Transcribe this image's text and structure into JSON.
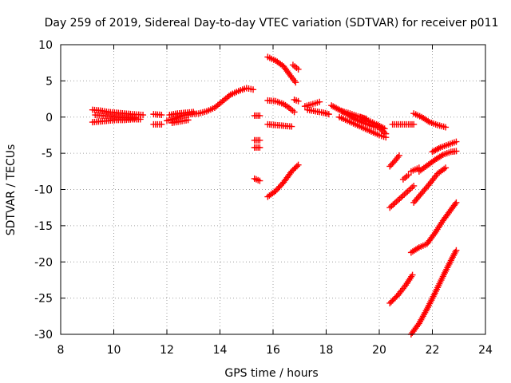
{
  "chart_data": {
    "type": "scatter",
    "title": "Day 259 of 2019, Sidereal Day-to-day VTEC variation (SDTVAR) for receiver p011",
    "xlabel": "GPS time / hours",
    "ylabel": "SDTVAR / TECUs",
    "xlim": [
      8,
      24
    ],
    "ylim": [
      -30,
      10
    ],
    "xticks": [
      "8",
      "10",
      "12",
      "14",
      "16",
      "18",
      "20",
      "22",
      "24"
    ],
    "yticks": [
      "10",
      "5",
      "0",
      "-5",
      "-10",
      "-15",
      "-20",
      "-25",
      "-30"
    ],
    "grid": true,
    "marker": "plus",
    "color": "#ff0000",
    "series": [
      {
        "points": [
          [
            9.2,
            1.0
          ],
          [
            9.5,
            0.9
          ],
          [
            9.8,
            0.7
          ],
          [
            10.1,
            0.6
          ],
          [
            10.4,
            0.5
          ],
          [
            10.7,
            0.4
          ],
          [
            11.1,
            0.3
          ]
        ]
      },
      {
        "points": [
          [
            9.2,
            -0.7
          ],
          [
            9.5,
            -0.6
          ],
          [
            9.8,
            -0.5
          ],
          [
            10.1,
            -0.4
          ],
          [
            10.4,
            -0.4
          ],
          [
            10.7,
            -0.3
          ],
          [
            11.0,
            -0.3
          ]
        ]
      },
      {
        "points": [
          [
            9.3,
            0.3
          ],
          [
            9.6,
            0.2
          ],
          [
            9.9,
            0.1
          ],
          [
            10.2,
            0.0
          ],
          [
            10.5,
            -0.1
          ],
          [
            10.8,
            -0.1
          ]
        ]
      },
      {
        "points": [
          [
            11.5,
            0.4
          ],
          [
            11.8,
            0.3
          ]
        ]
      },
      {
        "points": [
          [
            11.5,
            -1.0
          ],
          [
            11.8,
            -1.0
          ]
        ]
      },
      {
        "points": [
          [
            12.0,
            -0.5
          ],
          [
            12.3,
            -0.2
          ],
          [
            12.6,
            0.2
          ],
          [
            12.9,
            0.4
          ],
          [
            13.2,
            0.5
          ],
          [
            13.5,
            0.8
          ],
          [
            13.8,
            1.3
          ],
          [
            14.1,
            2.2
          ],
          [
            14.4,
            3.1
          ],
          [
            14.7,
            3.6
          ],
          [
            15.0,
            4.0
          ],
          [
            15.25,
            3.8
          ]
        ]
      },
      {
        "points": [
          [
            12.1,
            0.3
          ],
          [
            12.4,
            0.5
          ],
          [
            12.7,
            0.6
          ],
          [
            13.0,
            0.7
          ]
        ]
      },
      {
        "points": [
          [
            12.2,
            -0.8
          ],
          [
            12.5,
            -0.6
          ],
          [
            12.8,
            -0.4
          ]
        ]
      },
      {
        "points": [
          [
            15.3,
            0.2
          ],
          [
            15.5,
            0.2
          ]
        ]
      },
      {
        "points": [
          [
            15.3,
            -3.2
          ],
          [
            15.5,
            -3.2
          ]
        ]
      },
      {
        "points": [
          [
            15.3,
            -4.2
          ],
          [
            15.5,
            -4.2
          ]
        ]
      },
      {
        "points": [
          [
            15.3,
            -8.5
          ],
          [
            15.5,
            -8.8
          ]
        ]
      },
      {
        "points": [
          [
            15.8,
            8.3
          ],
          [
            16.1,
            7.8
          ],
          [
            16.4,
            7.0
          ],
          [
            16.7,
            5.5
          ],
          [
            16.85,
            4.8
          ]
        ]
      },
      {
        "points": [
          [
            16.75,
            7.2
          ],
          [
            16.95,
            6.6
          ]
        ]
      },
      {
        "points": [
          [
            15.8,
            2.3
          ],
          [
            16.1,
            2.2
          ],
          [
            16.4,
            1.8
          ],
          [
            16.6,
            1.3
          ],
          [
            16.8,
            0.7
          ]
        ]
      },
      {
        "points": [
          [
            15.8,
            -1.0
          ],
          [
            16.1,
            -1.1
          ],
          [
            16.4,
            -1.2
          ],
          [
            16.7,
            -1.3
          ]
        ]
      },
      {
        "points": [
          [
            15.8,
            -11.0
          ],
          [
            16.1,
            -10.2
          ],
          [
            16.4,
            -9.0
          ],
          [
            16.7,
            -7.5
          ],
          [
            16.95,
            -6.6
          ]
        ]
      },
      {
        "points": [
          [
            16.8,
            2.4
          ],
          [
            16.95,
            2.2
          ]
        ]
      },
      {
        "points": [
          [
            17.2,
            1.5
          ],
          [
            17.5,
            1.8
          ],
          [
            17.75,
            2.1
          ]
        ]
      },
      {
        "points": [
          [
            17.3,
            1.0
          ],
          [
            17.6,
            0.8
          ],
          [
            17.9,
            0.6
          ],
          [
            18.1,
            0.4
          ]
        ]
      },
      {
        "points": [
          [
            18.2,
            1.6
          ],
          [
            18.5,
            1.0
          ],
          [
            18.8,
            0.4
          ],
          [
            19.1,
            -0.3
          ],
          [
            19.4,
            -0.8
          ],
          [
            19.7,
            -1.2
          ],
          [
            20.0,
            -1.5
          ],
          [
            20.25,
            -2.3
          ]
        ]
      },
      {
        "points": [
          [
            18.5,
            0.0
          ],
          [
            18.8,
            -0.5
          ],
          [
            19.1,
            -1.0
          ],
          [
            19.4,
            -1.5
          ],
          [
            19.7,
            -2.0
          ],
          [
            20.0,
            -2.5
          ],
          [
            20.25,
            -2.8
          ]
        ]
      },
      {
        "points": [
          [
            18.6,
            0.8
          ],
          [
            18.9,
            0.5
          ],
          [
            19.2,
            0.1
          ],
          [
            19.5,
            -0.2
          ]
        ]
      },
      {
        "points": [
          [
            19.3,
            0.0
          ],
          [
            19.6,
            -0.5
          ],
          [
            19.9,
            -1.0
          ],
          [
            20.2,
            -1.6
          ]
        ]
      },
      {
        "points": [
          [
            20.5,
            -1.0
          ],
          [
            20.8,
            -1.0
          ],
          [
            21.1,
            -1.0
          ],
          [
            21.3,
            -1.0
          ]
        ]
      },
      {
        "points": [
          [
            21.3,
            0.5
          ],
          [
            21.6,
            0.0
          ],
          [
            21.9,
            -0.7
          ],
          [
            22.2,
            -1.1
          ],
          [
            22.5,
            -1.4
          ]
        ]
      },
      {
        "points": [
          [
            20.4,
            -6.8
          ],
          [
            20.6,
            -6.0
          ],
          [
            20.75,
            -5.3
          ]
        ]
      },
      {
        "points": [
          [
            20.4,
            -12.5
          ],
          [
            20.7,
            -11.5
          ],
          [
            21.0,
            -10.5
          ],
          [
            21.3,
            -9.5
          ]
        ]
      },
      {
        "points": [
          [
            20.9,
            -8.6
          ],
          [
            21.1,
            -8.0
          ]
        ]
      },
      {
        "points": [
          [
            21.2,
            -7.5
          ],
          [
            21.5,
            -7.0
          ]
        ]
      },
      {
        "points": [
          [
            21.3,
            -11.8
          ],
          [
            21.6,
            -10.5
          ],
          [
            21.9,
            -9.2
          ],
          [
            22.2,
            -7.8
          ],
          [
            22.5,
            -7.0
          ]
        ]
      },
      {
        "points": [
          [
            21.5,
            -7.5
          ],
          [
            21.8,
            -6.7
          ],
          [
            22.1,
            -5.9
          ],
          [
            22.4,
            -5.2
          ],
          [
            22.7,
            -4.8
          ],
          [
            22.9,
            -4.7
          ]
        ]
      },
      {
        "points": [
          [
            22.0,
            -4.8
          ],
          [
            22.3,
            -4.2
          ],
          [
            22.6,
            -3.8
          ],
          [
            22.9,
            -3.4
          ]
        ]
      },
      {
        "points": [
          [
            20.4,
            -25.7
          ],
          [
            20.7,
            -24.6
          ],
          [
            21.0,
            -23.2
          ],
          [
            21.25,
            -21.8
          ]
        ]
      },
      {
        "points": [
          [
            21.2,
            -18.7
          ],
          [
            21.5,
            -18.0
          ],
          [
            21.8,
            -17.5
          ],
          [
            22.1,
            -16.0
          ],
          [
            22.4,
            -14.3
          ],
          [
            22.7,
            -12.8
          ],
          [
            22.9,
            -11.8
          ]
        ]
      },
      {
        "points": [
          [
            21.2,
            -30.0
          ],
          [
            21.5,
            -28.5
          ],
          [
            21.8,
            -26.5
          ],
          [
            22.1,
            -24.3
          ],
          [
            22.4,
            -22.0
          ],
          [
            22.7,
            -19.8
          ],
          [
            22.9,
            -18.4
          ]
        ]
      }
    ]
  }
}
